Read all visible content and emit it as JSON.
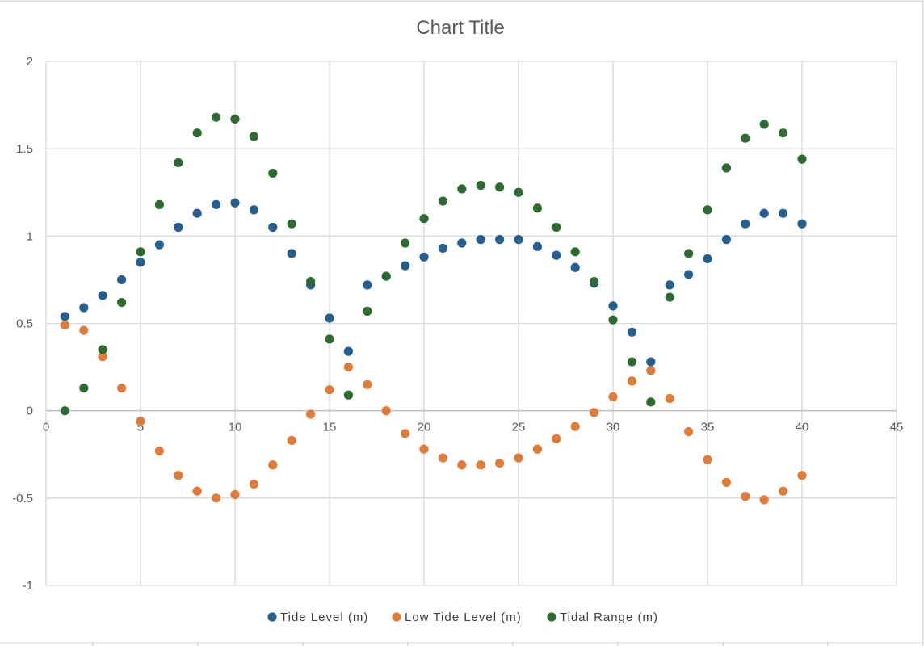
{
  "chart_data": {
    "type": "scatter",
    "title": "Chart Title",
    "xlabel": "",
    "ylabel": "",
    "xlim": [
      0,
      45
    ],
    "ylim": [
      -1,
      2
    ],
    "xticks": [
      "0",
      "5",
      "10",
      "15",
      "20",
      "25",
      "30",
      "35",
      "40",
      "45"
    ],
    "xtick_values": [
      0,
      5,
      10,
      15,
      20,
      25,
      30,
      35,
      40,
      45
    ],
    "yticks": [
      "2",
      "1.5",
      "1",
      "0.5",
      "0",
      "-0.5",
      "-1"
    ],
    "ytick_values": [
      2,
      1.5,
      1,
      0.5,
      0,
      -0.5,
      -1
    ],
    "grid": true,
    "legend_position": "bottom",
    "series": [
      {
        "name": "Tide Level (m)",
        "color": "#255E91",
        "x": [
          1,
          2,
          3,
          4,
          5,
          6,
          7,
          8,
          9,
          10,
          11,
          12,
          13,
          14,
          15,
          16,
          17,
          18,
          19,
          20,
          21,
          22,
          23,
          24,
          25,
          26,
          27,
          28,
          29,
          30,
          31,
          32,
          33,
          34,
          35,
          36,
          37,
          38,
          39,
          40
        ],
        "y": [
          0.54,
          0.59,
          0.66,
          0.75,
          0.85,
          0.95,
          1.05,
          1.13,
          1.18,
          1.19,
          1.15,
          1.05,
          0.9,
          0.72,
          0.53,
          0.34,
          0.72,
          0.77,
          0.83,
          0.88,
          0.93,
          0.96,
          0.98,
          0.98,
          0.98,
          0.94,
          0.89,
          0.82,
          0.73,
          0.6,
          0.45,
          0.28,
          0.72,
          0.78,
          0.87,
          0.98,
          1.07,
          1.13,
          1.13,
          1.07
        ]
      },
      {
        "name": "Low Tide Level (m)",
        "color": "#E07B39",
        "x": [
          1,
          2,
          3,
          4,
          5,
          6,
          7,
          8,
          9,
          10,
          11,
          12,
          13,
          14,
          15,
          16,
          17,
          18,
          19,
          20,
          21,
          22,
          23,
          24,
          25,
          26,
          27,
          28,
          29,
          30,
          31,
          32,
          33,
          34,
          35,
          36,
          37,
          38,
          39,
          40
        ],
        "y": [
          0.49,
          0.46,
          0.31,
          0.13,
          -0.06,
          -0.23,
          -0.37,
          -0.46,
          -0.5,
          -0.48,
          -0.42,
          -0.31,
          -0.17,
          -0.02,
          0.12,
          0.25,
          0.15,
          0.0,
          -0.13,
          -0.22,
          -0.27,
          -0.31,
          -0.31,
          -0.3,
          -0.27,
          -0.22,
          -0.16,
          -0.09,
          -0.01,
          0.08,
          0.17,
          0.23,
          0.07,
          -0.12,
          -0.28,
          -0.41,
          -0.49,
          -0.51,
          -0.46,
          -0.37
        ]
      },
      {
        "name": "Tidal Range (m)",
        "color": "#2E6B30",
        "x": [
          1,
          2,
          3,
          4,
          5,
          6,
          7,
          8,
          9,
          10,
          11,
          12,
          13,
          14,
          15,
          16,
          17,
          18,
          19,
          20,
          21,
          22,
          23,
          24,
          25,
          26,
          27,
          28,
          29,
          30,
          31,
          32,
          33,
          34,
          35,
          36,
          37,
          38,
          39,
          40
        ],
        "y": [
          0.0,
          0.13,
          0.35,
          0.62,
          0.91,
          1.18,
          1.42,
          1.59,
          1.68,
          1.67,
          1.57,
          1.36,
          1.07,
          0.74,
          0.41,
          0.09,
          0.57,
          0.77,
          0.96,
          1.1,
          1.2,
          1.27,
          1.29,
          1.28,
          1.25,
          1.16,
          1.05,
          0.91,
          0.74,
          0.52,
          0.28,
          0.05,
          0.65,
          0.9,
          1.15,
          1.39,
          1.56,
          1.64,
          1.59,
          1.44
        ]
      }
    ]
  }
}
